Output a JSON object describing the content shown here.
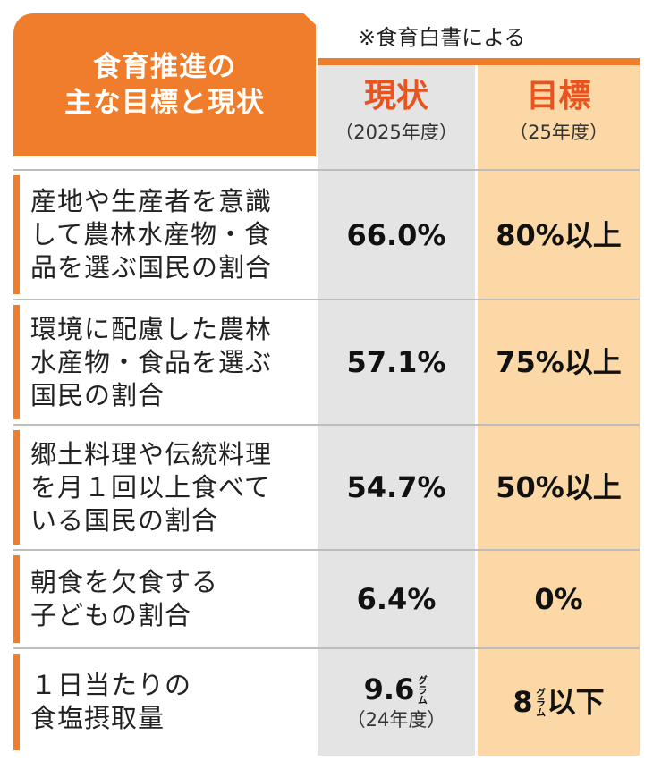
{
  "header": {
    "title_lines": [
      "食育推進の",
      "主な目標と現状"
    ],
    "note": "※食育白書による"
  },
  "columns": [
    {
      "title": "現状",
      "subtitle": "（2025年度）"
    },
    {
      "title": "目標",
      "subtitle": "（25年度）"
    }
  ],
  "table": {
    "rows": [
      {
        "label_lines": [
          "産地や生産者を意識",
          "して農林水産物・食",
          "品を選ぶ国民の割合"
        ],
        "current": "66.0%",
        "target": "80%以上"
      },
      {
        "label_lines": [
          "環境に配慮した農林",
          "水産物・食品を選ぶ",
          "国民の割合"
        ],
        "current": "57.1%",
        "target": "75%以上"
      },
      {
        "label_lines": [
          "郷土料理や伝統料理",
          "を月１回以上食べて",
          "いる国民の割合"
        ],
        "current": "54.7%",
        "target": "50%以上"
      },
      {
        "label_lines": [
          "朝食を欠食する",
          "子どもの割合"
        ],
        "current": "6.4%",
        "target": "0%"
      },
      {
        "label_lines": [
          "１日当たりの",
          "食塩摂取量"
        ],
        "current": "9.6",
        "current_unit": "グラム",
        "current_note": "（24年度）",
        "target": "8",
        "target_unit": "グラム",
        "target_suffix": "以下"
      }
    ]
  }
}
